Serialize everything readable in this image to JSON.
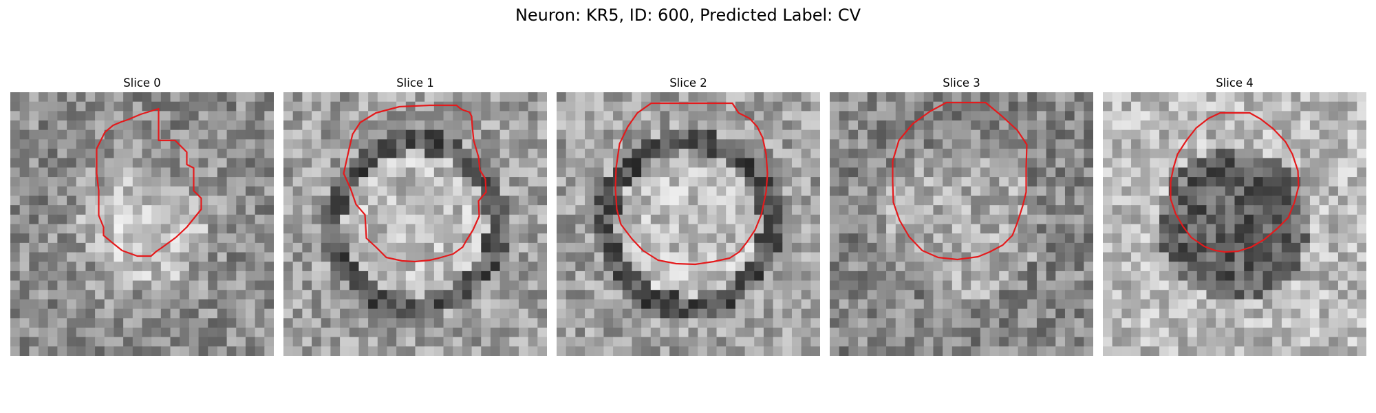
{
  "figure": {
    "title": "Neuron: KR5, ID: 600, Predicted Label: CV"
  },
  "panels": [
    {
      "title": "Slice 0",
      "pattern": "bright-center",
      "outline_color": "#e41a1c",
      "outline": [
        [
          24,
          24
        ],
        [
          24,
          70
        ],
        [
          48,
          70
        ],
        [
          65,
          87
        ],
        [
          65,
          105
        ],
        [
          75,
          110
        ],
        [
          75,
          143
        ],
        [
          86,
          154
        ],
        [
          86,
          170
        ],
        [
          65,
          196
        ],
        [
          49,
          211
        ],
        [
          27,
          227
        ],
        [
          21,
          231
        ],
        [
          13,
          238
        ],
        [
          7,
          238
        ],
        [
          -7,
          238
        ],
        [
          -29,
          230
        ],
        [
          -44,
          218
        ],
        [
          -56,
          208
        ],
        [
          -56,
          196
        ],
        [
          -63,
          179
        ],
        [
          -63,
          143
        ],
        [
          -66,
          118
        ],
        [
          -66,
          82
        ],
        [
          -54,
          58
        ],
        [
          -42,
          48
        ],
        [
          -30,
          43
        ],
        [
          -21,
          40
        ],
        [
          -2,
          32
        ]
      ]
    },
    {
      "title": "Slice 1",
      "pattern": "ring",
      "outline_color": "#e41a1c",
      "outline": [
        [
          21,
          19
        ],
        [
          60,
          19
        ],
        [
          66,
          24
        ],
        [
          70,
          26
        ],
        [
          73,
          27
        ],
        [
          79,
          29
        ],
        [
          82,
          35
        ],
        [
          83,
          50
        ],
        [
          85,
          70
        ],
        [
          92,
          94
        ],
        [
          94,
          113
        ],
        [
          102,
          126
        ],
        [
          103,
          145
        ],
        [
          92,
          158
        ],
        [
          93,
          180
        ],
        [
          84,
          200
        ],
        [
          74,
          216
        ],
        [
          69,
          225
        ],
        [
          55,
          235
        ],
        [
          34,
          241
        ],
        [
          21,
          244
        ],
        [
          0,
          246
        ],
        [
          -19,
          245
        ],
        [
          -42,
          240
        ],
        [
          -57,
          225
        ],
        [
          -71,
          212
        ],
        [
          -73,
          178
        ],
        [
          -86,
          163
        ],
        [
          -94,
          140
        ],
        [
          -104,
          118
        ],
        [
          -96,
          82
        ],
        [
          -91,
          61
        ],
        [
          -80,
          44
        ],
        [
          -57,
          30
        ],
        [
          -23,
          21
        ]
      ]
    },
    {
      "title": "Slice 2",
      "pattern": "ring",
      "outline_color": "#e41a1c",
      "outline": [
        [
          -54,
          16
        ],
        [
          64,
          16
        ],
        [
          73,
          30
        ],
        [
          89,
          38
        ],
        [
          100,
          50
        ],
        [
          108,
          66
        ],
        [
          113,
          90
        ],
        [
          115,
          118
        ],
        [
          113,
          145
        ],
        [
          106,
          178
        ],
        [
          97,
          200
        ],
        [
          85,
          218
        ],
        [
          74,
          232
        ],
        [
          60,
          241
        ],
        [
          37,
          246
        ],
        [
          10,
          250
        ],
        [
          -18,
          249
        ],
        [
          -44,
          244
        ],
        [
          -66,
          230
        ],
        [
          -82,
          213
        ],
        [
          -98,
          192
        ],
        [
          -104,
          170
        ],
        [
          -106,
          140
        ],
        [
          -105,
          110
        ],
        [
          -100,
          75
        ],
        [
          -88,
          50
        ],
        [
          -74,
          30
        ]
      ]
    },
    {
      "title": "Slice 3",
      "pattern": "speckle",
      "outline_color": "#e41a1c",
      "outline": [
        [
          -22,
          15
        ],
        [
          35,
          15
        ],
        [
          58,
          34
        ],
        [
          81,
          55
        ],
        [
          95,
          76
        ],
        [
          94,
          110
        ],
        [
          94,
          145
        ],
        [
          89,
          165
        ],
        [
          81,
          190
        ],
        [
          74,
          208
        ],
        [
          60,
          222
        ],
        [
          41,
          232
        ],
        [
          24,
          239
        ],
        [
          -6,
          243
        ],
        [
          -34,
          240
        ],
        [
          -57,
          230
        ],
        [
          -76,
          210
        ],
        [
          -90,
          186
        ],
        [
          -99,
          160
        ],
        [
          -100,
          130
        ],
        [
          -100,
          100
        ],
        [
          -91,
          70
        ],
        [
          -71,
          46
        ],
        [
          -46,
          28
        ]
      ]
    },
    {
      "title": "Slice 4",
      "pattern": "dark-center",
      "outline_color": "#e41a1c",
      "outline": [
        [
          -21,
          30
        ],
        [
          22,
          30
        ],
        [
          38,
          39
        ],
        [
          56,
          53
        ],
        [
          74,
          72
        ],
        [
          84,
          90
        ],
        [
          92,
          114
        ],
        [
          93,
          137
        ],
        [
          87,
          160
        ],
        [
          78,
          182
        ],
        [
          62,
          198
        ],
        [
          43,
          214
        ],
        [
          24,
          225
        ],
        [
          5,
          231
        ],
        [
          -14,
          232
        ],
        [
          -28,
          230
        ],
        [
          -44,
          224
        ],
        [
          -63,
          211
        ],
        [
          -75,
          195
        ],
        [
          -86,
          176
        ],
        [
          -93,
          155
        ],
        [
          -93,
          130
        ],
        [
          -89,
          110
        ],
        [
          -83,
          90
        ],
        [
          -70,
          70
        ],
        [
          -56,
          52
        ],
        [
          -38,
          38
        ]
      ]
    }
  ]
}
